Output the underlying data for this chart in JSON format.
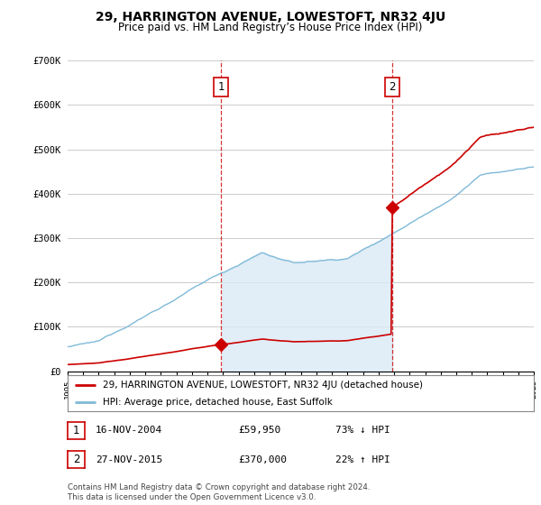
{
  "title": "29, HARRINGTON AVENUE, LOWESTOFT, NR32 4JU",
  "subtitle": "Price paid vs. HM Land Registry’s House Price Index (HPI)",
  "ylim": [
    0,
    700000
  ],
  "yticks": [
    0,
    100000,
    200000,
    300000,
    400000,
    500000,
    600000,
    700000
  ],
  "ytick_labels": [
    "£0",
    "£100K",
    "£200K",
    "£300K",
    "£400K",
    "£500K",
    "£600K",
    "£700K"
  ],
  "hpi_color": "#7fb9d8",
  "hpi_fill_color": "#daeaf5",
  "price_color": "#cc0000",
  "vline_color": "#cc0000",
  "marker_color": "#cc0000",
  "grid_color": "#cccccc",
  "bg_color": "#ffffff",
  "sale1_x": 2004.88,
  "sale1_y": 59950,
  "sale2_x": 2015.9,
  "sale2_y": 370000,
  "legend_property": "29, HARRINGTON AVENUE, LOWESTOFT, NR32 4JU (detached house)",
  "legend_hpi": "HPI: Average price, detached house, East Suffolk",
  "footnote": "Contains HM Land Registry data © Crown copyright and database right 2024.\nThis data is licensed under the Open Government Licence v3.0.",
  "xmin": 1995,
  "xmax": 2025,
  "table_rows": [
    {
      "num": "1",
      "date": "16-NOV-2004",
      "price": "£59,950",
      "hpi": "73% ↓ HPI"
    },
    {
      "num": "2",
      "date": "27-NOV-2015",
      "price": "£370,000",
      "hpi": "22% ↑ HPI"
    }
  ]
}
